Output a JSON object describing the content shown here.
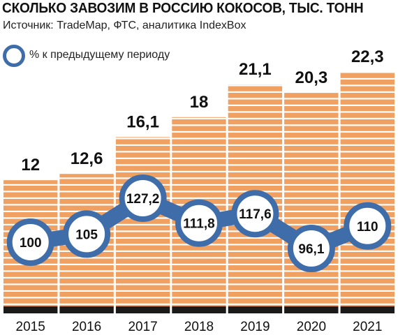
{
  "header": {
    "title": "СКОЛЬКО ЗАВОЗИМ В РОССИЮ КОКОСОВ, ТЫС. ТОНН",
    "subtitle": "Источник: TradeMap, ФТС, аналитика IndexBox"
  },
  "legend": {
    "label": "% к предыдущему периоду"
  },
  "colors": {
    "bar": "#f0a060",
    "bar_stripe": "#ffffff",
    "base": "#1a1a1a",
    "line": "#3e6da9",
    "marker_fill": "#ffffff"
  },
  "chart_data": {
    "type": "bar",
    "categories": [
      "2015",
      "2016",
      "2017",
      "2018",
      "2019",
      "2020",
      "2021"
    ],
    "series": [
      {
        "values": [
          12,
          12.6,
          16.1,
          18,
          21.1,
          20.3,
          22.3
        ]
      }
    ],
    "bar_value_labels": [
      "12",
      "12,6",
      "16,1",
      "18",
      "21,1",
      "20,3",
      "22,3"
    ],
    "line_series": {
      "name": "% к предыдущему периоду",
      "values": [
        100,
        105,
        127.2,
        111.8,
        117.6,
        96.1,
        110
      ],
      "labels": [
        "100",
        "105",
        "127,2",
        "111,8",
        "117,6",
        "96,1",
        "110"
      ]
    },
    "ylim": [
      0,
      23
    ],
    "grid": false
  }
}
